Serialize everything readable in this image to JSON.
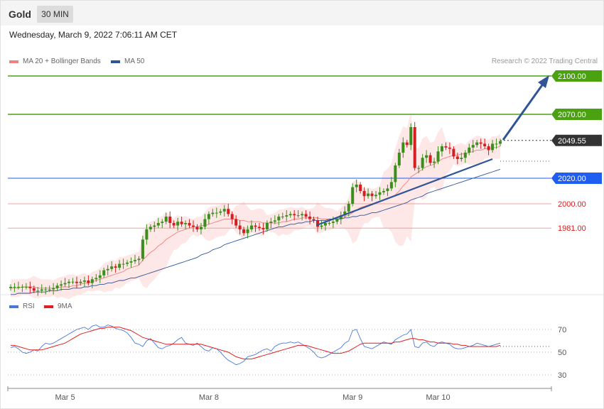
{
  "header": {
    "title": "Gold",
    "timeframe": "30 MIN",
    "datetime": "Wednesday, March 9, 2022 7:06:11 AM CET",
    "copyright": "Research © 2022 Trading Central"
  },
  "legend_main": [
    {
      "label": "MA 20 + Bollinger Bands",
      "color": "#f08080"
    },
    {
      "label": "MA 50",
      "color": "#2f5597"
    }
  ],
  "legend_rsi": [
    {
      "label": "RSI",
      "color": "#4a78d8"
    },
    {
      "label": "9MA",
      "color": "#e02020"
    }
  ],
  "colors": {
    "target": "#4aa210",
    "pivot": "#1f5ef0",
    "support": "#d62020",
    "current": "#333333",
    "candle_up": "#3a8f1c",
    "candle_down": "#d22020",
    "arrow": "#2f5597",
    "band_fill": "#fde3e3"
  },
  "chart_data": [
    {
      "type": "candlestick",
      "title": "Gold 30 MIN",
      "x": [
        "Mar 5",
        "Mar 8",
        "Mar 9",
        "Mar 10"
      ],
      "ylim": [
        1920,
        2110
      ],
      "levels": [
        {
          "value": 2100.0,
          "label": "2100.00",
          "kind": "target"
        },
        {
          "value": 2070.0,
          "label": "2070.00",
          "kind": "target"
        },
        {
          "value": 2049.55,
          "label": "2049.55",
          "kind": "current"
        },
        {
          "value": 2020.0,
          "label": "2020.00",
          "kind": "pivot"
        },
        {
          "value": 2000.0,
          "label": "2000.00",
          "kind": "support"
        },
        {
          "value": 1981.0,
          "label": "1981.00",
          "kind": "support"
        }
      ],
      "close_approx": [
        1935,
        1935,
        1935,
        1935,
        1935,
        1934,
        1932,
        1932,
        1933,
        1933,
        1933,
        1934,
        1936,
        1937,
        1938,
        1939,
        1939,
        1938,
        1939,
        1940,
        1938,
        1941,
        1942,
        1944,
        1948,
        1949,
        1951,
        1950,
        1953,
        1953,
        1954,
        1955,
        1956,
        1957,
        1972,
        1980,
        1982,
        1983,
        1985,
        1986,
        1990,
        1985,
        1983,
        1986,
        1984,
        1985,
        1983,
        1982,
        1980,
        1982,
        1988,
        1992,
        1993,
        1993,
        1994,
        1996,
        1992,
        1988,
        1983,
        1980,
        1977,
        1980,
        1983,
        1982,
        1981,
        1980,
        1985,
        1986,
        1987,
        1990,
        1990,
        1991,
        1992,
        1991,
        1991,
        1992,
        1990,
        1988,
        1987,
        1982,
        1983,
        1985,
        1985,
        1986,
        1988,
        1991,
        1994,
        2000,
        2013,
        2015,
        2010,
        2006,
        2008,
        2006,
        2007,
        2009,
        2010,
        2012,
        2017,
        2030,
        2040,
        2048,
        2046,
        2060,
        2028,
        2028,
        2036,
        2038,
        2032,
        2033,
        2041,
        2045,
        2044,
        2043,
        2037,
        2035,
        2036,
        2040,
        2044,
        2046,
        2048,
        2047,
        2045,
        2042,
        2047,
        2047,
        2049
      ],
      "ma20_approx": [
        1934,
        1934,
        1934,
        1935,
        1935,
        1935,
        1935,
        1934,
        1934,
        1934,
        1934,
        1934,
        1934,
        1935,
        1935,
        1935,
        1936,
        1936,
        1937,
        1938,
        1938,
        1939,
        1940,
        1941,
        1942,
        1943,
        1944,
        1945,
        1946,
        1947,
        1949,
        1950,
        1951,
        1952,
        1956,
        1959,
        1962,
        1964,
        1967,
        1969,
        1972,
        1974,
        1976,
        1978,
        1979,
        1980,
        1981,
        1982,
        1982,
        1983,
        1983,
        1984,
        1985,
        1986,
        1987,
        1988,
        1988,
        1988,
        1988,
        1987,
        1987,
        1986,
        1986,
        1986,
        1986,
        1985,
        1985,
        1985,
        1985,
        1985,
        1986,
        1986,
        1987,
        1988,
        1988,
        1989,
        1989,
        1989,
        1989,
        1989,
        1988,
        1988,
        1988,
        1988,
        1988,
        1989,
        1990,
        1991,
        1993,
        1995,
        1997,
        1998,
        1999,
        2000,
        2001,
        2002,
        2003,
        2004,
        2005,
        2007,
        2010,
        2014,
        2017,
        2021,
        2023,
        2025,
        2027,
        2029,
        2030,
        2031,
        2033,
        2035,
        2036,
        2037,
        2038,
        2038,
        2039,
        2039,
        2040,
        2041,
        2042,
        2042,
        2043,
        2043,
        2044,
        2044,
        2045
      ],
      "ma50_approx": [
        1929,
        1929,
        1930,
        1930,
        1930,
        1930,
        1931,
        1931,
        1931,
        1931,
        1932,
        1932,
        1932,
        1933,
        1933,
        1933,
        1934,
        1934,
        1934,
        1935,
        1935,
        1936,
        1936,
        1937,
        1937,
        1938,
        1938,
        1939,
        1940,
        1940,
        1941,
        1942,
        1942,
        1943,
        1944,
        1945,
        1946,
        1947,
        1948,
        1949,
        1950,
        1951,
        1952,
        1953,
        1954,
        1955,
        1956,
        1957,
        1958,
        1960,
        1961,
        1962,
        1964,
        1965,
        1966,
        1968,
        1969,
        1970,
        1971,
        1972,
        1973,
        1974,
        1975,
        1976,
        1977,
        1978,
        1979,
        1980,
        1981,
        1982,
        1982,
        1983,
        1984,
        1984,
        1985,
        1985,
        1986,
        1986,
        1987,
        1987,
        1987,
        1987,
        1988,
        1988,
        1988,
        1988,
        1989,
        1989,
        1990,
        1990,
        1991,
        1991,
        1992,
        1993,
        1993,
        1994,
        1995,
        1996,
        1997,
        1998,
        1999,
        2000,
        2001,
        2003,
        2004,
        2005,
        2006,
        2008,
        2009,
        2010,
        2011,
        2012,
        2013,
        2014,
        2015,
        2016,
        2017,
        2018,
        2019,
        2020,
        2021,
        2022,
        2023,
        2024,
        2025,
        2026,
        2027
      ]
    },
    {
      "type": "line",
      "title": "RSI",
      "ylim": [
        20,
        80
      ],
      "yticks": [
        30,
        50,
        70
      ],
      "series": [
        {
          "name": "RSI",
          "values": [
            54,
            55,
            53,
            50,
            49,
            50,
            52,
            51,
            55,
            58,
            57,
            58,
            60,
            62,
            64,
            66,
            68,
            70,
            71,
            72,
            70,
            73,
            74,
            72,
            72,
            74,
            73,
            71,
            70,
            69,
            67,
            63,
            58,
            57,
            55,
            60,
            62,
            58,
            54,
            53,
            55,
            56,
            58,
            61,
            63,
            58,
            57,
            56,
            58,
            55,
            52,
            51,
            54,
            53,
            50,
            46,
            43,
            41,
            39,
            40,
            42,
            46,
            47,
            48,
            50,
            52,
            53,
            51,
            55,
            57,
            58,
            58,
            59,
            58,
            59,
            57,
            55,
            53,
            50,
            46,
            45,
            46,
            48,
            50,
            52,
            54,
            58,
            60,
            69,
            70,
            62,
            55,
            54,
            53,
            55,
            57,
            59,
            58,
            57,
            61,
            63,
            65,
            66,
            70,
            55,
            54,
            58,
            59,
            56,
            55,
            58,
            59,
            58,
            57,
            54,
            53,
            53,
            54,
            55,
            56,
            58,
            57,
            56,
            55,
            56,
            57,
            58
          ]
        },
        {
          "name": "9MA",
          "values": [
            56,
            56,
            55,
            54,
            53,
            52,
            52,
            52,
            52,
            53,
            54,
            55,
            56,
            57,
            58,
            60,
            62,
            64,
            66,
            67,
            68,
            69,
            70,
            71,
            71,
            72,
            72,
            72,
            72,
            71,
            70,
            69,
            67,
            65,
            63,
            62,
            61,
            60,
            59,
            58,
            57,
            57,
            57,
            57,
            57,
            57,
            57,
            57,
            57,
            57,
            56,
            55,
            54,
            53,
            52,
            51,
            50,
            48,
            46,
            45,
            44,
            44,
            44,
            45,
            46,
            47,
            48,
            49,
            50,
            51,
            52,
            53,
            54,
            55,
            56,
            56,
            56,
            55,
            54,
            53,
            52,
            51,
            50,
            49,
            49,
            49,
            50,
            51,
            53,
            55,
            57,
            58,
            58,
            58,
            58,
            58,
            58,
            58,
            58,
            59,
            59,
            60,
            61,
            62,
            62,
            61,
            61,
            60,
            59,
            59,
            58,
            58,
            58,
            58,
            57,
            57,
            56,
            56,
            55,
            55,
            55,
            55,
            55,
            55,
            55,
            55,
            56
          ]
        }
      ]
    }
  ],
  "x_axis": {
    "ticks": [
      {
        "label": "Mar 5",
        "index": 14
      },
      {
        "label": "Mar 8",
        "index": 51
      },
      {
        "label": "Mar 9",
        "index": 88
      },
      {
        "label": "Mar 10",
        "index": 110
      }
    ]
  }
}
